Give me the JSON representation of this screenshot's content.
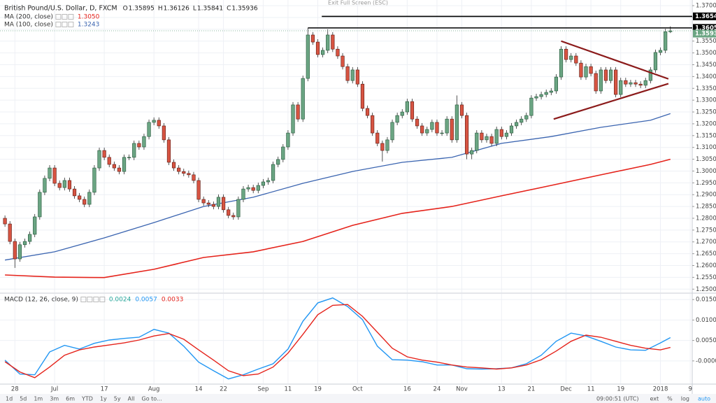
{
  "toolbar_top": "Exit Full Screen (ESC)",
  "chart_data": [
    {
      "type": "candlestick",
      "title": "British Pound/U.S. Dollar, D, FXCM",
      "ohlc_prefixes": [
        "O",
        "H",
        "L",
        "C"
      ],
      "open": [
        1.28,
        1.2776,
        1.2702,
        1.2628,
        1.2688,
        1.2702,
        1.2732,
        1.2806,
        1.291,
        1.2969,
        1.3013,
        1.2948,
        1.293,
        1.296,
        1.2924,
        1.2895,
        1.288,
        1.2859,
        1.291,
        1.3013,
        1.3087,
        1.3058,
        1.3028,
        1.3013,
        1.2998,
        1.3058,
        1.3058,
        1.3117,
        1.3102,
        1.3146,
        1.3206,
        1.3215,
        1.3191,
        1.3132,
        1.3037,
        1.3013,
        1.2998,
        1.299,
        1.2984,
        1.296,
        1.288,
        1.2865,
        1.2859,
        1.285,
        1.2889,
        1.2836,
        1.2812,
        1.2806,
        1.288,
        1.2924,
        1.293,
        1.2918,
        1.2939,
        1.2954,
        1.296,
        1.3028,
        1.3049,
        1.3102,
        1.3161,
        1.328,
        1.322,
        1.3392,
        1.3576,
        1.3546,
        1.3493,
        1.3511,
        1.3576,
        1.3516,
        1.3487,
        1.3442,
        1.3383,
        1.3428,
        1.3368,
        1.3265,
        1.3235,
        1.3161,
        1.3117,
        1.3087,
        1.3132,
        1.3206,
        1.3235,
        1.325,
        1.3294,
        1.322,
        1.3191,
        1.3161,
        1.3176,
        1.3206,
        1.3161,
        1.3161,
        1.322,
        1.3132,
        1.328,
        1.3235,
        1.3072,
        1.3087,
        1.3161,
        1.3132,
        1.3146,
        1.3117,
        1.3176,
        1.3146,
        1.3161,
        1.3191,
        1.3206,
        1.322,
        1.3235,
        1.3309,
        1.3315,
        1.3324,
        1.3333,
        1.3339,
        1.3398,
        1.3516,
        1.3472,
        1.3487,
        1.3457,
        1.3398,
        1.3442,
        1.3413,
        1.3339,
        1.3428,
        1.3383,
        1.3428,
        1.3324,
        1.3383,
        1.3368,
        1.3374,
        1.3368,
        1.3363,
        1.3383,
        1.3428,
        1.3502,
        1.3511,
        1.35895
      ],
      "high": [
        1.2812,
        1.2788,
        1.2714,
        1.27,
        1.2714,
        1.2744,
        1.2818,
        1.2922,
        1.2981,
        1.3025,
        1.3025,
        1.296,
        1.2972,
        1.2972,
        1.2936,
        1.2907,
        1.2892,
        1.2922,
        1.3025,
        1.3099,
        1.3099,
        1.307,
        1.304,
        1.3025,
        1.307,
        1.307,
        1.3129,
        1.3129,
        1.3158,
        1.3218,
        1.3227,
        1.3227,
        1.3203,
        1.3144,
        1.3049,
        1.3025,
        1.301,
        1.3002,
        1.2996,
        1.2972,
        1.2892,
        1.2877,
        1.2871,
        1.2901,
        1.2901,
        1.2848,
        1.2824,
        1.2892,
        1.2936,
        1.2942,
        1.2942,
        1.2951,
        1.2966,
        1.2972,
        1.304,
        1.3061,
        1.3114,
        1.3173,
        1.3292,
        1.3292,
        1.3404,
        1.3605,
        1.3588,
        1.3558,
        1.3523,
        1.36,
        1.3588,
        1.3528,
        1.3499,
        1.3454,
        1.344,
        1.344,
        1.338,
        1.3277,
        1.3247,
        1.3173,
        1.3129,
        1.3144,
        1.3218,
        1.3247,
        1.3262,
        1.3306,
        1.3306,
        1.3232,
        1.3203,
        1.3188,
        1.3218,
        1.3218,
        1.3173,
        1.3232,
        1.3232,
        1.332,
        1.3292,
        1.3247,
        1.3099,
        1.3173,
        1.3173,
        1.3158,
        1.3158,
        1.3188,
        1.3188,
        1.3173,
        1.3203,
        1.3218,
        1.3232,
        1.3247,
        1.3321,
        1.3327,
        1.3336,
        1.3345,
        1.3351,
        1.341,
        1.3528,
        1.3528,
        1.3499,
        1.3499,
        1.3469,
        1.3454,
        1.3454,
        1.3425,
        1.344,
        1.344,
        1.344,
        1.344,
        1.3395,
        1.3395,
        1.3386,
        1.3386,
        1.338,
        1.3395,
        1.344,
        1.3514,
        1.3523,
        1.3602,
        1.36126
      ],
      "low": [
        1.2764,
        1.269,
        1.259,
        1.2616,
        1.2676,
        1.269,
        1.272,
        1.2794,
        1.2898,
        1.2957,
        1.2936,
        1.2918,
        1.2918,
        1.2912,
        1.2883,
        1.2868,
        1.2847,
        1.2847,
        1.2898,
        1.3001,
        1.3046,
        1.3016,
        1.3001,
        1.2986,
        1.2986,
        1.3046,
        1.3046,
        1.309,
        1.309,
        1.3134,
        1.3194,
        1.3179,
        1.312,
        1.3025,
        1.3001,
        1.2986,
        1.2978,
        1.2972,
        1.2948,
        1.2868,
        1.2853,
        1.2847,
        1.2838,
        1.2838,
        1.2824,
        1.28,
        1.2794,
        1.2794,
        1.2868,
        1.2912,
        1.2906,
        1.2906,
        1.2927,
        1.2942,
        1.2948,
        1.3016,
        1.3037,
        1.309,
        1.3149,
        1.3208,
        1.3208,
        1.338,
        1.3534,
        1.3481,
        1.3481,
        1.3499,
        1.3504,
        1.3475,
        1.343,
        1.3371,
        1.3371,
        1.3356,
        1.3253,
        1.3223,
        1.3149,
        1.3105,
        1.304,
        1.3075,
        1.312,
        1.3194,
        1.3223,
        1.3238,
        1.3208,
        1.3179,
        1.3149,
        1.3149,
        1.3164,
        1.3149,
        1.3149,
        1.3149,
        1.312,
        1.312,
        1.3223,
        1.305,
        1.305,
        1.3075,
        1.312,
        1.312,
        1.3105,
        1.3105,
        1.3134,
        1.3134,
        1.3149,
        1.3179,
        1.3194,
        1.3208,
        1.3223,
        1.3297,
        1.3303,
        1.3312,
        1.3321,
        1.3327,
        1.3386,
        1.346,
        1.346,
        1.3445,
        1.3386,
        1.3386,
        1.3401,
        1.3327,
        1.3327,
        1.3371,
        1.3371,
        1.3312,
        1.3312,
        1.3356,
        1.3356,
        1.3356,
        1.3351,
        1.3351,
        1.3371,
        1.3416,
        1.349,
        1.3499,
        1.35841
      ],
      "close": [
        1.2776,
        1.2702,
        1.2628,
        1.2688,
        1.2702,
        1.2732,
        1.2806,
        1.291,
        1.2969,
        1.3013,
        1.2948,
        1.293,
        1.296,
        1.2924,
        1.2895,
        1.288,
        1.2859,
        1.291,
        1.3013,
        1.3087,
        1.3058,
        1.3028,
        1.3013,
        1.2998,
        1.3058,
        1.3058,
        1.3117,
        1.3102,
        1.3146,
        1.3206,
        1.3215,
        1.3191,
        1.3132,
        1.3037,
        1.3013,
        1.2998,
        1.299,
        1.2984,
        1.296,
        1.288,
        1.2865,
        1.2859,
        1.285,
        1.2889,
        1.2836,
        1.2812,
        1.2806,
        1.288,
        1.2924,
        1.293,
        1.2918,
        1.2939,
        1.2954,
        1.296,
        1.3028,
        1.3049,
        1.3102,
        1.3161,
        1.328,
        1.322,
        1.3392,
        1.3576,
        1.3546,
        1.3493,
        1.3511,
        1.3576,
        1.3516,
        1.3487,
        1.3442,
        1.3383,
        1.3428,
        1.3368,
        1.3265,
        1.3235,
        1.3161,
        1.3117,
        1.3087,
        1.3132,
        1.3206,
        1.3235,
        1.325,
        1.3294,
        1.322,
        1.3191,
        1.3161,
        1.3176,
        1.3206,
        1.3161,
        1.3161,
        1.322,
        1.3132,
        1.328,
        1.3235,
        1.3072,
        1.3087,
        1.3161,
        1.3132,
        1.3146,
        1.3117,
        1.3176,
        1.3146,
        1.3161,
        1.3191,
        1.3206,
        1.322,
        1.3235,
        1.3309,
        1.3315,
        1.3324,
        1.3333,
        1.3339,
        1.3398,
        1.3516,
        1.3472,
        1.3487,
        1.3457,
        1.3398,
        1.3442,
        1.3413,
        1.3339,
        1.3428,
        1.3383,
        1.3428,
        1.3324,
        1.3383,
        1.3368,
        1.3374,
        1.3368,
        1.3363,
        1.3383,
        1.3428,
        1.3502,
        1.3511,
        1.359,
        1.35936
      ],
      "up_color": "#6ba583",
      "down_color": "#d75442",
      "overlays": [
        {
          "name": "MA (200, close)",
          "color": "#e5231b",
          "x": [
            0,
            10,
            20,
            30,
            40,
            50,
            60,
            70,
            80,
            90,
            100,
            110,
            120,
            130,
            134
          ],
          "values": [
            1.256,
            1.2551,
            1.2549,
            1.2584,
            1.2634,
            1.2658,
            1.2702,
            1.277,
            1.2821,
            1.285,
            1.2895,
            1.2939,
            1.2984,
            1.3028,
            1.305
          ],
          "value_labels": [
            null,
            null,
            null,
            null,
            null,
            null,
            null,
            null,
            null,
            null,
            null,
            null,
            null,
            null,
            "1.3050"
          ]
        },
        {
          "name": "MA (100, close)",
          "color": "#3a64b0",
          "x": [
            0,
            10,
            20,
            30,
            40,
            50,
            60,
            70,
            80,
            90,
            100,
            110,
            120,
            130,
            134
          ],
          "values": [
            1.2623,
            1.2658,
            1.2717,
            1.2782,
            1.285,
            1.2889,
            1.2948,
            1.2998,
            1.3037,
            1.3058,
            1.3117,
            1.3146,
            1.3185,
            1.3215,
            1.3243
          ]
        }
      ],
      "levels": [
        {
          "value": 1.36547,
          "start": 63.8,
          "color": "#000000"
        },
        {
          "value": 1.36059,
          "start": 61,
          "color": "#000000"
        }
      ],
      "last_price_color": "#6ba583",
      "trendlines": [
        {
          "x": [
            112,
            133.6
          ],
          "y": [
            1.355,
            1.339
          ],
          "color": "#8b1a1a"
        },
        {
          "x": [
            110.5,
            133.6
          ],
          "y": [
            1.322,
            1.337
          ],
          "color": "#8b1a1a"
        }
      ],
      "xlim": [
        -1,
        138.4
      ],
      "xticks": [
        {
          "value": 2,
          "label": "28"
        },
        {
          "value": 10,
          "label": "Jul"
        },
        {
          "value": 20,
          "label": "17"
        },
        {
          "value": 30,
          "label": "Aug"
        },
        {
          "value": 39,
          "label": "14"
        },
        {
          "value": 44,
          "label": "22"
        },
        {
          "value": 52,
          "label": "Sep"
        },
        {
          "value": 57,
          "label": "11"
        },
        {
          "value": 63,
          "label": "19"
        },
        {
          "value": 71,
          "label": "Oct"
        },
        {
          "value": 81,
          "label": "16"
        },
        {
          "value": 87,
          "label": "24"
        },
        {
          "value": 92,
          "label": "Nov"
        },
        {
          "value": 100,
          "label": "13"
        },
        {
          "value": 106,
          "label": "21"
        },
        {
          "value": 113,
          "label": "Dec"
        },
        {
          "value": 118,
          "label": "11"
        },
        {
          "value": 124,
          "label": "19"
        },
        {
          "value": 132,
          "label": "2018"
        },
        {
          "value": 138,
          "label": "9"
        }
      ],
      "ylim": [
        1.2486,
        1.3724
      ],
      "yticks": [
        {
          "value": 1.25,
          "label": "1.25000"
        },
        {
          "value": 1.255,
          "label": "1.25500"
        },
        {
          "value": 1.26,
          "label": "1.26000"
        },
        {
          "value": 1.265,
          "label": "1.26500"
        },
        {
          "value": 1.27,
          "label": "1.27000"
        },
        {
          "value": 1.275,
          "label": "1.27500"
        },
        {
          "value": 1.28,
          "label": "1.28000"
        },
        {
          "value": 1.285,
          "label": "1.28500"
        },
        {
          "value": 1.29,
          "label": "1.29000"
        },
        {
          "value": 1.295,
          "label": "1.29500"
        },
        {
          "value": 1.3,
          "label": "1.30000"
        },
        {
          "value": 1.305,
          "label": "1.30500"
        },
        {
          "value": 1.31,
          "label": "1.31000"
        },
        {
          "value": 1.315,
          "label": "1.31500"
        },
        {
          "value": 1.32,
          "label": "1.32000"
        },
        {
          "value": 1.325,
          "label": "1.32500"
        },
        {
          "value": 1.33,
          "label": "1.33000"
        },
        {
          "value": 1.335,
          "label": "1.33500"
        },
        {
          "value": 1.34,
          "label": "1.34000"
        },
        {
          "value": 1.345,
          "label": "1.34500"
        },
        {
          "value": 1.35,
          "label": "1.35000"
        },
        {
          "value": 1.355,
          "label": "1.35500"
        },
        {
          "value": 1.36,
          "label": "1.36000"
        },
        {
          "value": 1.365,
          "label": "1.36500"
        },
        {
          "value": 1.37,
          "label": "1.37000"
        }
      ],
      "grid": true
    },
    {
      "type": "line",
      "title": "MACD (12, 26, close, 9)",
      "histogram": 0.0024,
      "histogram_color": "#26a69a",
      "x": [
        0,
        3,
        6,
        9,
        12,
        15,
        18,
        21,
        24,
        27,
        30,
        33,
        36,
        39,
        42,
        45,
        48,
        51,
        54,
        57,
        60,
        63,
        66,
        69,
        72,
        75,
        78,
        81,
        84,
        87,
        90,
        93,
        96,
        99,
        102,
        105,
        108,
        111,
        114,
        117,
        120,
        123,
        126,
        129,
        132,
        134
      ],
      "series": [
        {
          "color": "#2196f3",
          "values": [
            0.0002,
            -0.0032,
            -0.0034,
            0.0022,
            0.0038,
            0.0029,
            0.0043,
            0.0051,
            0.0055,
            0.0058,
            0.0077,
            0.0068,
            0.0036,
            -0.0003,
            -0.0024,
            -0.0044,
            -0.0034,
            -0.002,
            -0.0007,
            0.0029,
            0.0097,
            0.0142,
            0.0154,
            0.0133,
            0.0101,
            0.0036,
            0.0003,
            0.0002,
            -0.0002,
            -0.001,
            -0.001,
            -0.0019,
            -0.002,
            -0.0019,
            -0.0017,
            -0.0007,
            0.0014,
            0.0048,
            0.0068,
            0.0061,
            0.0048,
            0.0034,
            0.0027,
            0.0026,
            0.0044,
            0.0057
          ]
        },
        {
          "color": "#e5231b",
          "values": [
            -0.0002,
            -0.0027,
            -0.0041,
            -0.0015,
            0.0014,
            0.0027,
            0.0034,
            0.0039,
            0.0044,
            0.0051,
            0.0061,
            0.0067,
            0.0053,
            0.0027,
            0.0002,
            -0.0024,
            -0.0036,
            -0.0032,
            -0.0015,
            0.0019,
            0.0065,
            0.0113,
            0.0136,
            0.0138,
            0.0109,
            0.007,
            0.0031,
            0.001,
            0.0002,
            -0.0003,
            -0.001,
            -0.0015,
            -0.0017,
            -0.002,
            -0.0017,
            -0.001,
            0.0003,
            0.0024,
            0.0048,
            0.0063,
            0.0058,
            0.0048,
            0.0038,
            0.0031,
            0.0027,
            0.0033
          ]
        }
      ],
      "xlim": [
        -1,
        138.4
      ],
      "ylim": [
        -0.0055,
        0.0164
      ],
      "yticks": [
        {
          "value": 0.015,
          "label": "0.0150"
        },
        {
          "value": 0.01,
          "label": "0.0100"
        },
        {
          "value": 0.005,
          "label": "0.0050"
        },
        {
          "value": 0,
          "label": "-0.0000"
        }
      ],
      "grid": true
    }
  ],
  "bottom_toolbar": {
    "ranges": [
      "1d",
      "5d",
      "1m",
      "3m",
      "6m",
      "YTD",
      "1y",
      "5y",
      "All",
      "Go to..."
    ],
    "time": "09:00:51 (UTC)",
    "options": [
      "ext",
      "%",
      "log",
      "auto"
    ]
  }
}
